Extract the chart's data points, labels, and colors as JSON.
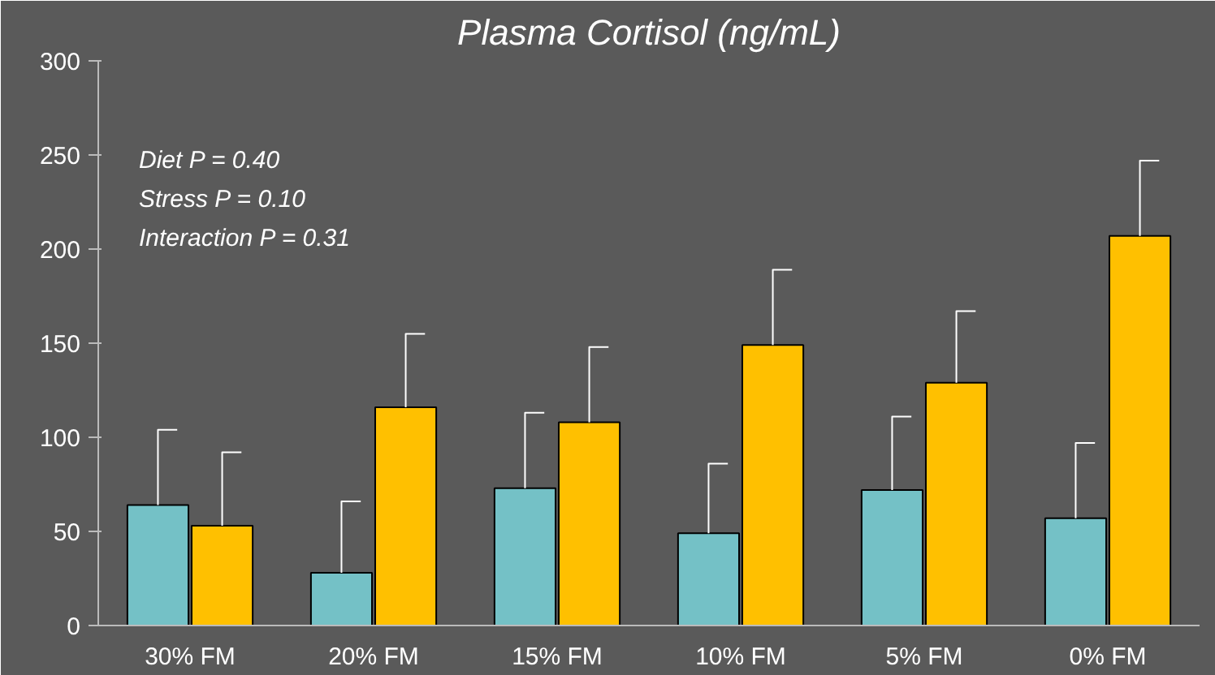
{
  "chart_data": {
    "type": "bar",
    "title": "Plasma Cortisol (ng/mL)",
    "categories": [
      "30% FM",
      "20% FM",
      "15% FM",
      "10% FM",
      "5% FM",
      "0% FM"
    ],
    "series": [
      {
        "color": "#74c1c6",
        "values": [
          64,
          28,
          73,
          49,
          72,
          57
        ],
        "errors": [
          [
            64,
            104
          ],
          [
            28,
            66
          ],
          [
            73,
            113
          ],
          [
            49,
            86
          ],
          [
            72,
            111
          ],
          [
            57,
            97
          ]
        ]
      },
      {
        "color": "#ffc000",
        "values": [
          53,
          116,
          108,
          149,
          129,
          207
        ],
        "errors": [
          [
            53,
            92
          ],
          [
            116,
            155
          ],
          [
            108,
            148
          ],
          [
            149,
            189
          ],
          [
            129,
            167
          ],
          [
            207,
            247
          ]
        ]
      }
    ],
    "annotations": [
      "Diet P = 0.40",
      "Stress P = 0.10",
      "Interaction P = 0.31"
    ],
    "ylim": [
      0,
      300
    ],
    "yticks": [
      0,
      50,
      100,
      150,
      200,
      250,
      300
    ],
    "grid": false
  }
}
